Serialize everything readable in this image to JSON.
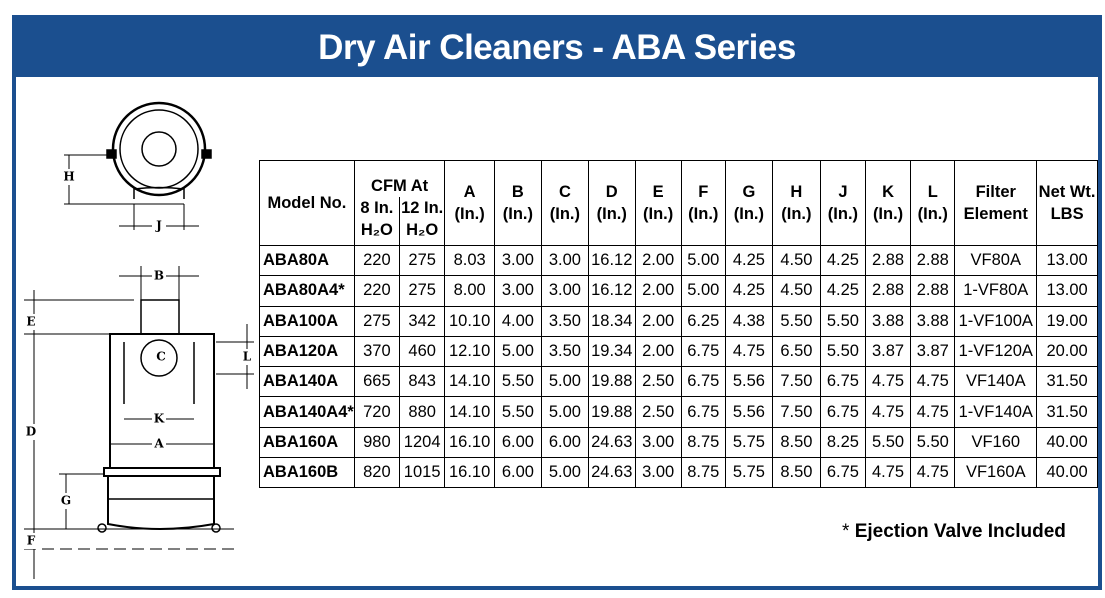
{
  "header": {
    "title": "Dry Air Cleaners - ABA Series"
  },
  "diagram": {
    "labels": [
      "H",
      "J",
      "B",
      "E",
      "L",
      "C",
      "K",
      "A",
      "D",
      "G",
      "F"
    ]
  },
  "table": {
    "group_header": "CFM At",
    "columns": [
      [
        "Model No."
      ],
      [
        "8 In.",
        "H₂O"
      ],
      [
        "12 In.",
        "H₂O"
      ],
      [
        "A",
        "(In.)"
      ],
      [
        "B",
        "(In.)"
      ],
      [
        "C",
        "(In.)"
      ],
      [
        "D",
        "(In.)"
      ],
      [
        "E",
        "(In.)"
      ],
      [
        "F",
        "(In.)"
      ],
      [
        "G",
        "(In.)"
      ],
      [
        "H",
        "(In.)"
      ],
      [
        "J",
        "(In.)"
      ],
      [
        "K",
        "(In.)"
      ],
      [
        "L",
        "(In.)"
      ],
      [
        "Filter",
        "Element"
      ],
      [
        "Net Wt.",
        "LBS"
      ]
    ],
    "rows": [
      [
        "ABA80A",
        "220",
        "275",
        "8.03",
        "3.00",
        "3.00",
        "16.12",
        "2.00",
        "5.00",
        "4.25",
        "4.50",
        "4.25",
        "2.88",
        "2.88",
        "VF80A",
        "13.00"
      ],
      [
        "ABA80A4*",
        "220",
        "275",
        "8.00",
        "3.00",
        "3.00",
        "16.12",
        "2.00",
        "5.00",
        "4.25",
        "4.50",
        "4.25",
        "2.88",
        "2.88",
        "1-VF80A",
        "13.00"
      ],
      [
        "ABA100A",
        "275",
        "342",
        "10.10",
        "4.00",
        "3.50",
        "18.34",
        "2.00",
        "6.25",
        "4.38",
        "5.50",
        "5.50",
        "3.88",
        "3.88",
        "1-VF100A",
        "19.00"
      ],
      [
        "ABA120A",
        "370",
        "460",
        "12.10",
        "5.00",
        "3.50",
        "19.34",
        "2.00",
        "6.75",
        "4.75",
        "6.50",
        "5.50",
        "3.87",
        "3.87",
        "1-VF120A",
        "20.00"
      ],
      [
        "ABA140A",
        "665",
        "843",
        "14.10",
        "5.50",
        "5.00",
        "19.88",
        "2.50",
        "6.75",
        "5.56",
        "7.50",
        "6.75",
        "4.75",
        "4.75",
        "VF140A",
        "31.50"
      ],
      [
        "ABA140A4*",
        "720",
        "880",
        "14.10",
        "5.50",
        "5.00",
        "19.88",
        "2.50",
        "6.75",
        "5.56",
        "7.50",
        "6.75",
        "4.75",
        "4.75",
        "1-VF140A",
        "31.50"
      ],
      [
        "ABA160A",
        "980",
        "1204",
        "16.10",
        "6.00",
        "6.00",
        "24.63",
        "3.00",
        "8.75",
        "5.75",
        "8.50",
        "8.25",
        "5.50",
        "5.50",
        "VF160",
        "40.00"
      ],
      [
        "ABA160B",
        "820",
        "1015",
        "16.10",
        "6.00",
        "5.00",
        "24.63",
        "3.00",
        "8.75",
        "5.75",
        "8.50",
        "6.75",
        "4.75",
        "4.75",
        "VF160A",
        "40.00"
      ]
    ]
  },
  "footnote": {
    "mark": "*",
    "text": "Ejection Valve Included"
  }
}
